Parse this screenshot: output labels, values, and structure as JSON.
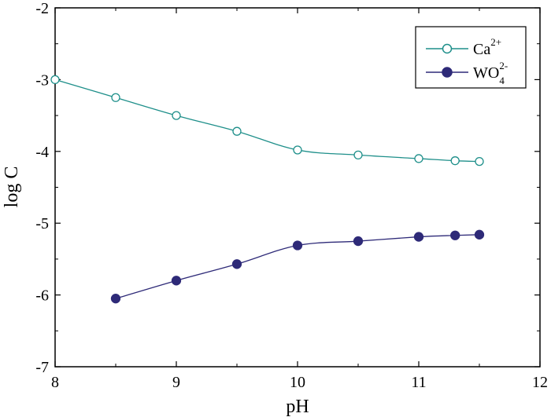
{
  "chart_data": {
    "type": "line",
    "title": "",
    "xlabel": "pH",
    "ylabel": "log C",
    "xlim": [
      8,
      12
    ],
    "ylim": [
      -7,
      -2
    ],
    "xticks": [
      8,
      9,
      10,
      11,
      12
    ],
    "yticks": [
      -7,
      -6,
      -5,
      -4,
      -3,
      -2
    ],
    "xtick_labels": [
      "8",
      "9",
      "10",
      "11",
      "12"
    ],
    "ytick_labels": [
      "-7",
      "-6",
      "-5",
      "-4",
      "-3",
      "-2"
    ],
    "grid": false,
    "legend_position": "top-right",
    "series": [
      {
        "name": "Ca2+",
        "legend_base": "Ca",
        "legend_sup": "2+",
        "legend_sub": "",
        "marker": "open-circle",
        "color": "#1e8f8a",
        "x": [
          8.0,
          8.5,
          9.0,
          9.5,
          10.0,
          10.5,
          11.0,
          11.3,
          11.5
        ],
        "y": [
          -3.0,
          -3.25,
          -3.5,
          -3.72,
          -3.98,
          -4.05,
          -4.1,
          -4.13,
          -4.14
        ]
      },
      {
        "name": "WO4 2-",
        "legend_base": "WO",
        "legend_sup": "2-",
        "legend_sub": "4",
        "marker": "filled-circle",
        "color": "#2e2a78",
        "x": [
          8.5,
          9.0,
          9.5,
          10.0,
          10.5,
          11.0,
          11.3,
          11.5
        ],
        "y": [
          -6.05,
          -5.8,
          -5.57,
          -5.31,
          -5.25,
          -5.19,
          -5.17,
          -5.16
        ]
      }
    ]
  }
}
